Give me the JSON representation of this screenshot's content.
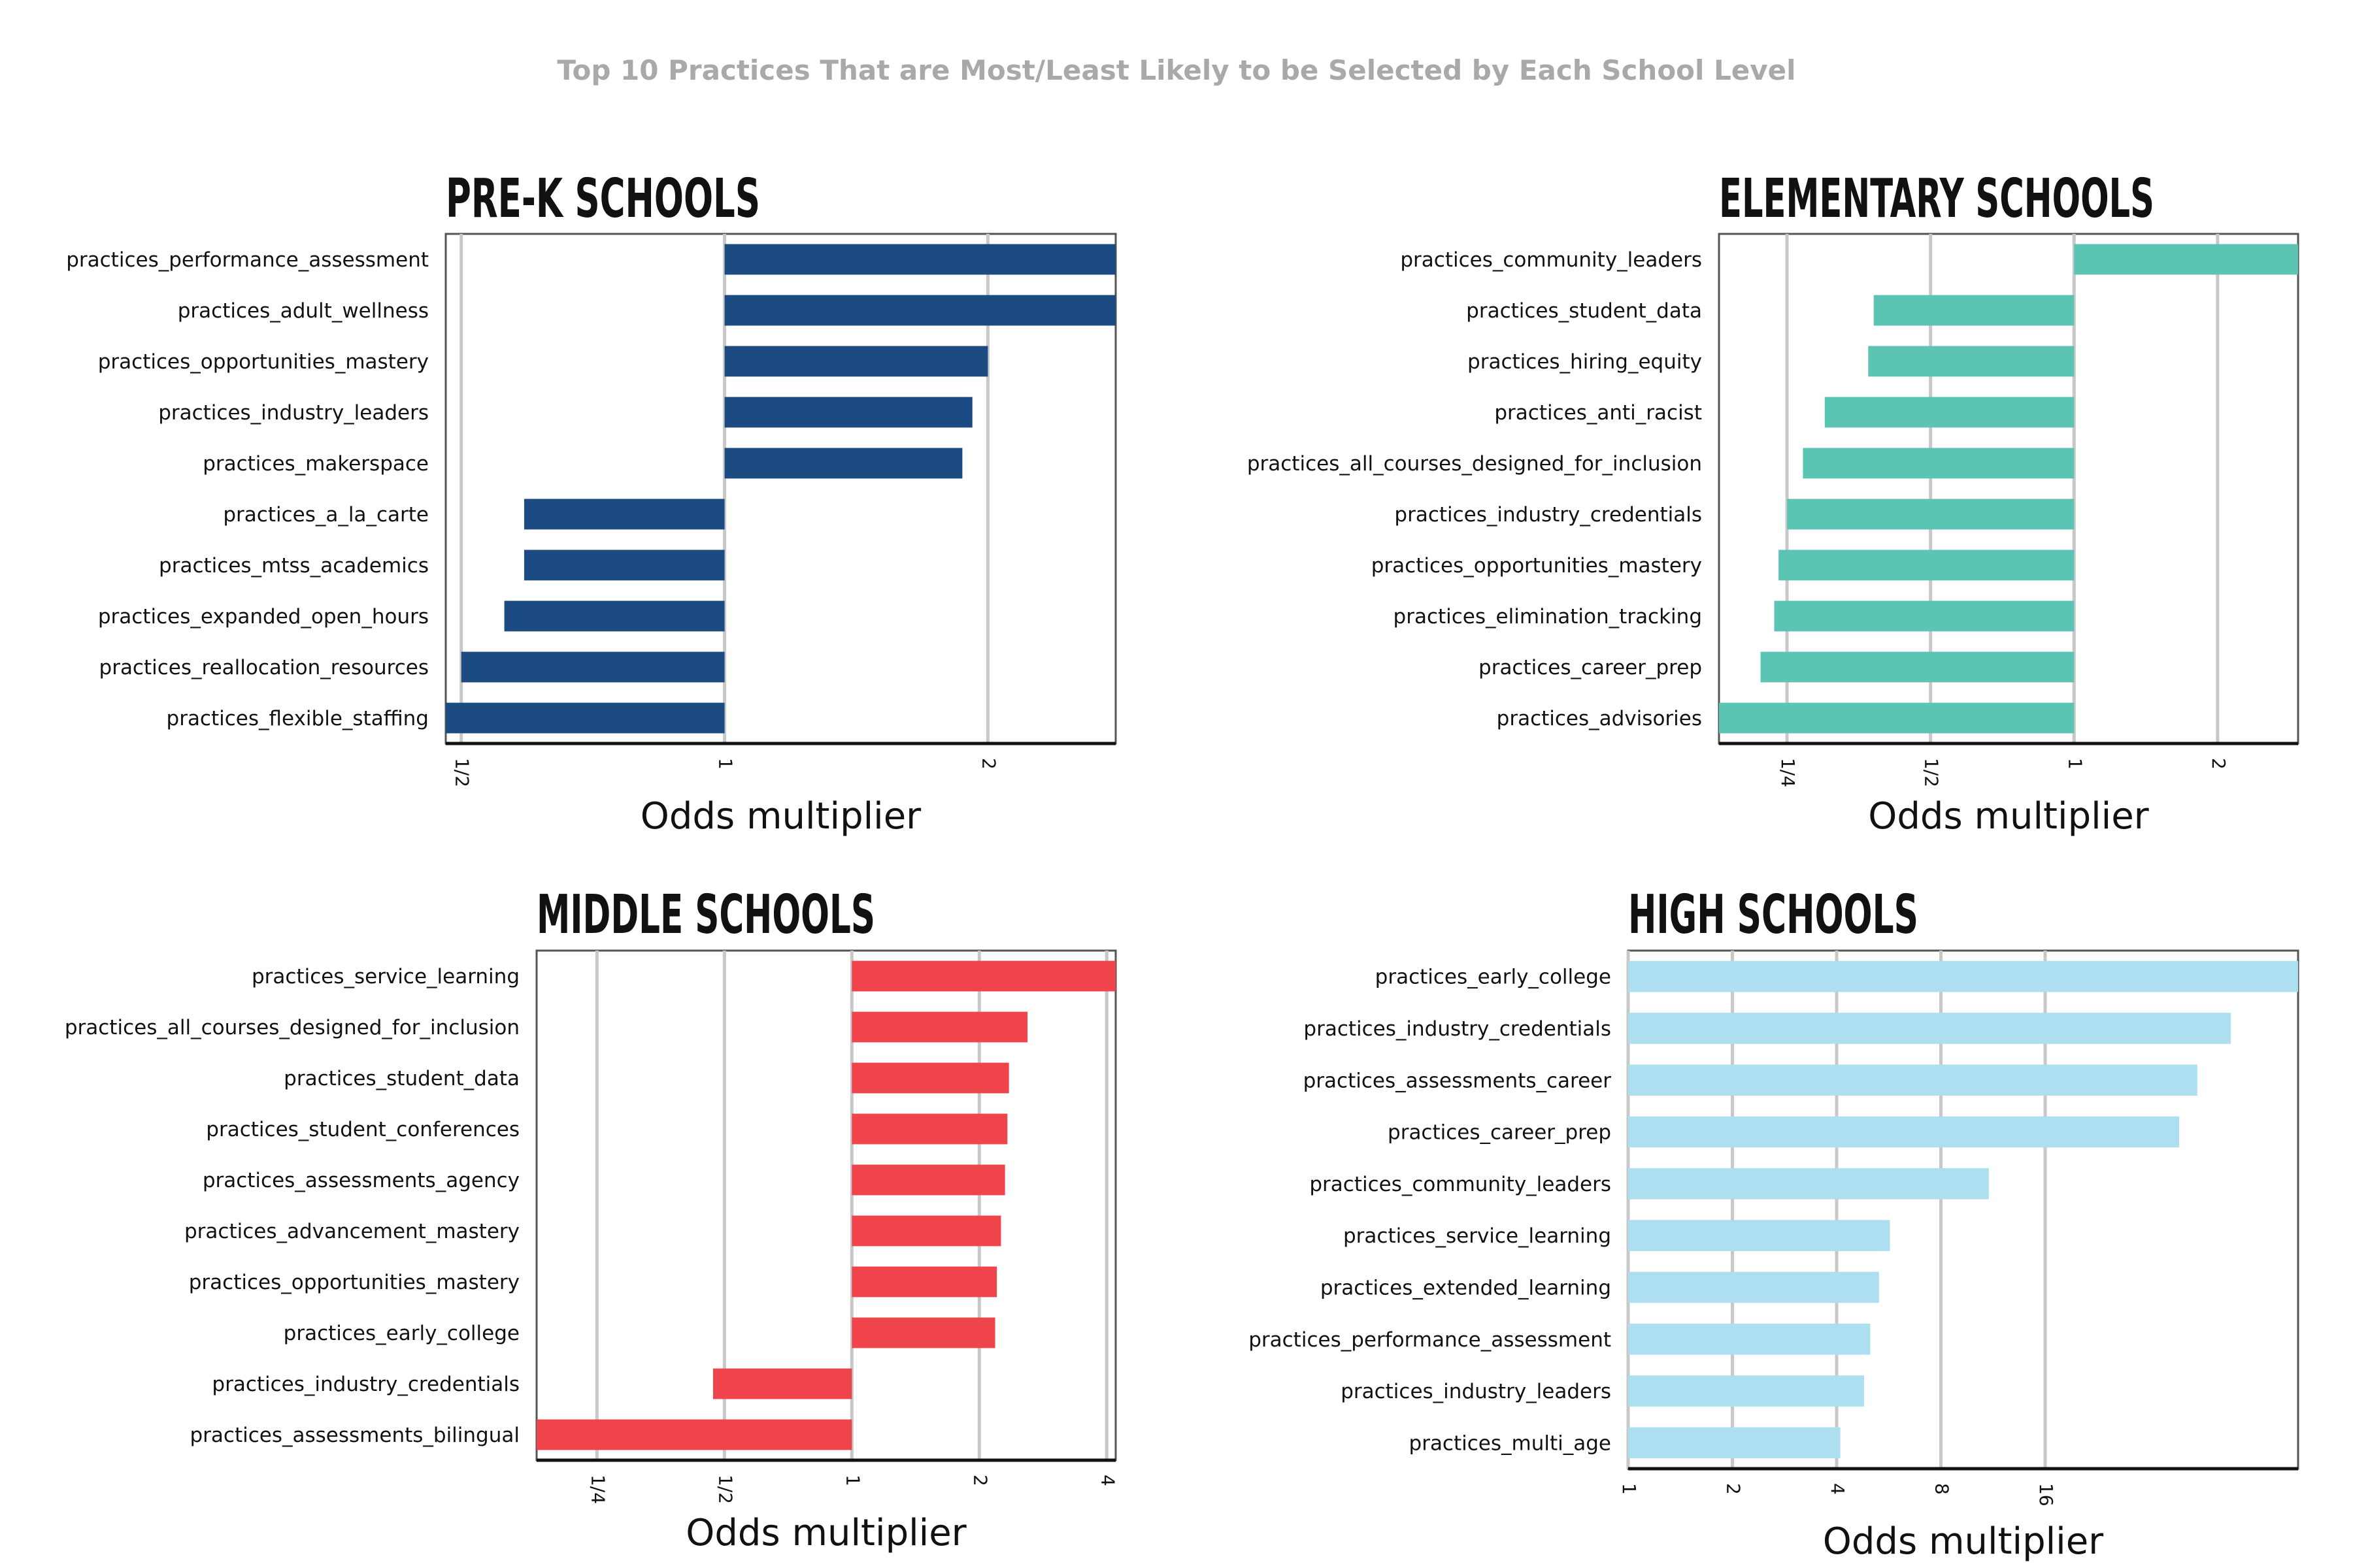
{
  "title": "Top 10 Practices That are Most/Least Likely to be Selected by Each School Level",
  "chart_data": [
    {
      "type": "bar",
      "orientation": "horizontal",
      "title": "PRE-K SCHOOLS",
      "xlabel": "Odds multiplier",
      "xscale": "log2",
      "xticks": [
        0.5,
        1,
        2
      ],
      "xtick_labels": [
        "1/2",
        "1",
        "2"
      ],
      "xlim": [
        0.48,
        2.8
      ],
      "color": "#1b4b82",
      "categories": [
        "practices_performance_assessment",
        "practices_adult_wellness",
        "practices_opportunities_mastery",
        "practices_industry_leaders",
        "practices_makerspace",
        "practices_a_la_carte",
        "practices_mtss_academics",
        "practices_expanded_open_hours",
        "practices_reallocation_resources",
        "practices_flexible_staffing"
      ],
      "values": [
        2.8,
        2.8,
        2.0,
        1.92,
        1.87,
        0.59,
        0.59,
        0.56,
        0.5,
        0.48
      ]
    },
    {
      "type": "bar",
      "orientation": "horizontal",
      "title": "ELEMENTARY SCHOOLS",
      "xlabel": "Odds multiplier",
      "xscale": "log2",
      "xticks": [
        0.25,
        0.5,
        1,
        2
      ],
      "xtick_labels": [
        "1/4",
        "1/2",
        "1",
        "2"
      ],
      "xlim": [
        0.18,
        2.95
      ],
      "color": "#5bc4b3",
      "categories": [
        "practices_community_leaders",
        "practices_student_data",
        "practices_hiring_equity",
        "practices_anti_racist",
        "practices_all_courses_designed_for_inclusion",
        "practices_industry_credentials",
        "practices_opportunities_mastery",
        "practices_elimination_tracking",
        "practices_career_prep",
        "practices_advisories"
      ],
      "values": [
        2.95,
        0.38,
        0.37,
        0.3,
        0.27,
        0.25,
        0.24,
        0.235,
        0.22,
        0.18
      ]
    },
    {
      "type": "bar",
      "orientation": "horizontal",
      "title": "MIDDLE SCHOOLS",
      "xlabel": "Odds multiplier",
      "xscale": "log2",
      "xticks": [
        0.25,
        0.5,
        1,
        2,
        4
      ],
      "xtick_labels": [
        "1/4",
        "1/2",
        "1",
        "2",
        "4"
      ],
      "xlim": [
        0.18,
        4.2
      ],
      "color": "#ef444c",
      "categories": [
        "practices_service_learning",
        "practices_all_courses_designed_for_inclusion",
        "practices_student_data",
        "practices_student_conferences",
        "practices_assessments_agency",
        "practices_advancement_mastery",
        "practices_opportunities_mastery",
        "practices_early_college",
        "practices_industry_credentials",
        "practices_assessments_bilingual"
      ],
      "values": [
        4.2,
        2.6,
        2.35,
        2.33,
        2.3,
        2.25,
        2.2,
        2.18,
        0.47,
        0.18
      ]
    },
    {
      "type": "bar",
      "orientation": "horizontal",
      "title": "HIGH SCHOOLS",
      "xlabel": "Odds multiplier",
      "xscale": "log2",
      "xticks": [
        1,
        2,
        4,
        8,
        16
      ],
      "xtick_labels": [
        "1",
        "2",
        "4",
        "8",
        "16"
      ],
      "xlim": [
        1,
        86
      ],
      "color": "#aedff0",
      "categories": [
        "practices_early_college",
        "practices_industry_credentials",
        "practices_assessments_career",
        "practices_career_prep",
        "practices_community_leaders",
        "practices_service_learning",
        "practices_extended_learning",
        "practices_performance_assessment",
        "practices_industry_leaders",
        "practices_multi_age"
      ],
      "values": [
        86,
        55,
        44,
        39,
        11,
        5.7,
        5.3,
        5.0,
        4.8,
        4.1
      ]
    }
  ]
}
